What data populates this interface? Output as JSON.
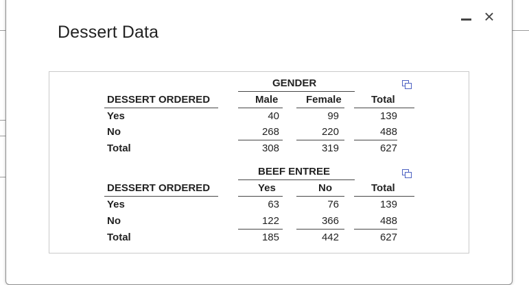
{
  "dialog": {
    "title": "Dessert Data",
    "minimize_label": "minimize",
    "close_symbol": "×"
  },
  "tables": [
    {
      "group_header": "GENDER",
      "row_header": "DESSERT ORDERED",
      "columns": [
        "Male",
        "Female",
        "Total"
      ],
      "rows": [
        {
          "label": "Yes",
          "values": [
            "40",
            "99",
            "139"
          ]
        },
        {
          "label": "No",
          "values": [
            "268",
            "220",
            "488"
          ]
        },
        {
          "label": "Total",
          "values": [
            "308",
            "319",
            "627"
          ]
        }
      ],
      "icon": "copy-data-icon"
    },
    {
      "group_header": "BEEF ENTREE",
      "row_header": "DESSERT ORDERED",
      "columns": [
        "Yes",
        "No",
        "Total"
      ],
      "rows": [
        {
          "label": "Yes",
          "values": [
            "63",
            "76",
            "139"
          ]
        },
        {
          "label": "No",
          "values": [
            "122",
            "366",
            "488"
          ]
        },
        {
          "label": "Total",
          "values": [
            "185",
            "442",
            "627"
          ]
        }
      ],
      "icon": "copy-data-icon"
    }
  ]
}
